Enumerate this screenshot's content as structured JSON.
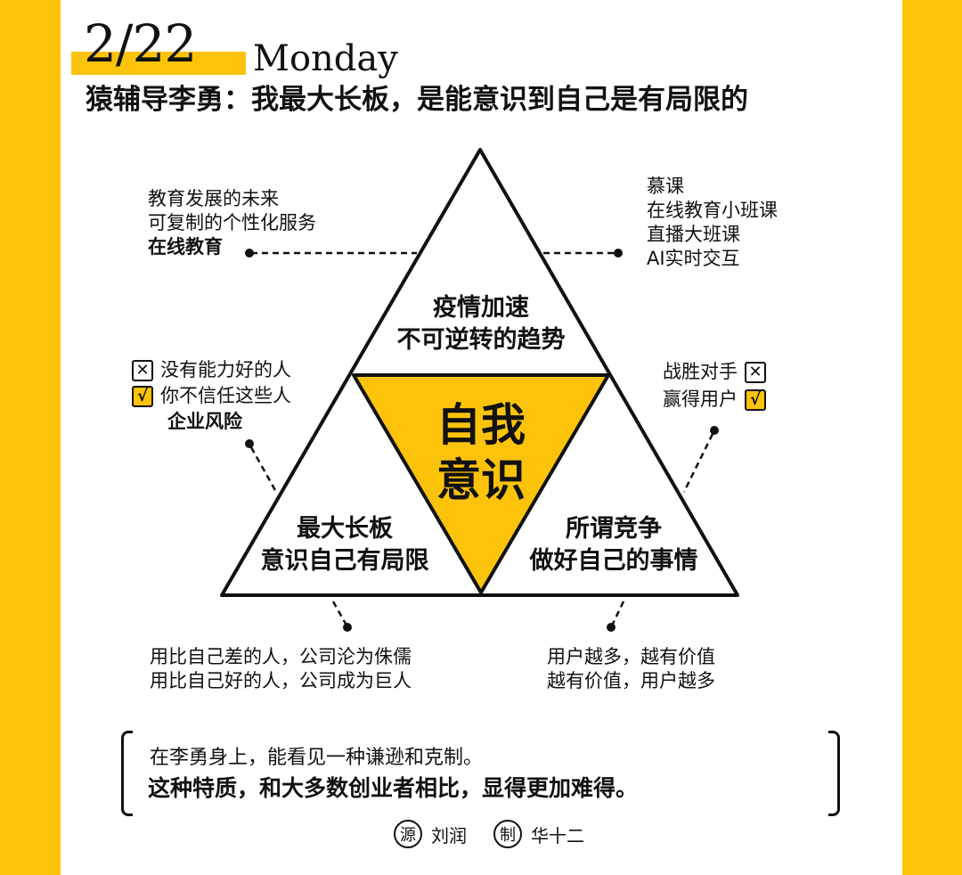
{
  "header": {
    "date": "2/22",
    "weekday": "Monday",
    "headline": "猿辅导李勇：我最大长板，是能意识到自己是有局限的"
  },
  "diagram": {
    "core": [
      "自我",
      "意识"
    ],
    "top": [
      "疫情加速",
      "不可逆转的趋势"
    ],
    "left": [
      "最大长板",
      "意识自己有局限"
    ],
    "right": [
      "所谓竞争",
      "做好自己的事情"
    ]
  },
  "notes": {
    "top_left": [
      "教育发展的未来",
      "可复制的个性化服务",
      "在线教育"
    ],
    "top_right": [
      "慕课",
      "在线教育小班课",
      "直播大班课",
      "AI实时交互"
    ],
    "mid_left": {
      "items": [
        {
          "mark": "✕",
          "text": "没有能力好的人"
        },
        {
          "mark": "√",
          "text": "你不信任这些人"
        }
      ],
      "label": "企业风险"
    },
    "mid_right": {
      "items": [
        {
          "mark": "✕",
          "text": "战胜对手"
        },
        {
          "mark": "√",
          "text": "赢得用户"
        }
      ]
    },
    "bottom_left": [
      "用比自己差的人，公司沦为侏儒",
      "用比自己好的人，公司成为巨人"
    ],
    "bottom_right": [
      "用户越多，越有价值",
      "越有价值，用户越多"
    ]
  },
  "quote": {
    "line1": "在李勇身上，能看见一种谦逊和克制。",
    "line2": "这种特质，和大多数创业者相比，显得更加难得。"
  },
  "credits": {
    "source_mark": "源",
    "source": "刘润",
    "maker_mark": "制",
    "maker": "华十二"
  },
  "colors": {
    "accent": "#FCC30A",
    "ink": "#111111",
    "paper": "#FFFFFF"
  }
}
